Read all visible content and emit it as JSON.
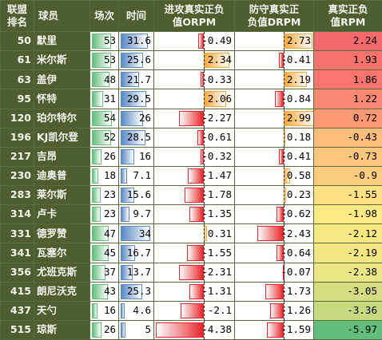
{
  "headers": {
    "rank": "联盟\n排名",
    "player": "球员",
    "games": "场次",
    "minutes": "时间",
    "orpm": "进攻真实正负\n值ORPM",
    "drpm": "防守真实正\n负值DRPM",
    "rpm": "真实正负\n值RPM"
  },
  "scales": {
    "games_max": 60,
    "minutes_max": 36,
    "rpm_abs_max": 4.4
  },
  "colors": {
    "olive": "#4f5e2e",
    "games_bar": "#63be7b",
    "minutes_bar": "#5a8ac6",
    "positive_bar": "#f8a83c",
    "negative_bar": "#e8262a",
    "rpm_high": "#f8696b",
    "rpm_mid": "#ffeb84",
    "rpm_low": "#63be7b"
  },
  "rows": [
    {
      "rank": "50",
      "name": "默里",
      "games": 53,
      "minutes": 31.6,
      "orpm": -0.49,
      "drpm": 2.73,
      "rpm": 2.24
    },
    {
      "rank": "61",
      "name": "米尔斯",
      "games": 53,
      "minutes": 25.6,
      "orpm": 2.34,
      "drpm": -0.41,
      "rpm": 1.93
    },
    {
      "rank": "63",
      "name": "盖伊",
      "games": 48,
      "minutes": 21.7,
      "orpm": -0.33,
      "drpm": 2.19,
      "rpm": 1.86
    },
    {
      "rank": "95",
      "name": "怀特",
      "games": 31,
      "minutes": 29.5,
      "orpm": 2.06,
      "drpm": -0.84,
      "rpm": 1.22
    },
    {
      "rank": "120",
      "name": "珀尔特尔",
      "games": 54,
      "minutes": 26,
      "orpm": -2.27,
      "drpm": 2.99,
      "rpm": 0.72
    },
    {
      "rank": "196",
      "name": "KJ凯尔登",
      "games": 52,
      "minutes": 28.5,
      "orpm": -0.61,
      "drpm": 0.18,
      "rpm": -0.43
    },
    {
      "rank": "217",
      "name": "吉昂",
      "games": 26,
      "minutes": 16,
      "orpm": -0.32,
      "drpm": -0.41,
      "rpm": -0.73
    },
    {
      "rank": "230",
      "name": "迪奥普",
      "games": 18,
      "minutes": 7.1,
      "orpm": -1.47,
      "drpm": 0.58,
      "rpm": -0.9
    },
    {
      "rank": "283",
      "name": "莱尔斯",
      "games": 23,
      "minutes": 15.6,
      "orpm": -1.78,
      "drpm": 0.23,
      "rpm": -1.55
    },
    {
      "rank": "314",
      "name": "卢卡",
      "games": 23,
      "minutes": 9.7,
      "orpm": -1.35,
      "drpm": -0.62,
      "rpm": -1.98
    },
    {
      "rank": "331",
      "name": "德罗赞",
      "games": 47,
      "minutes": 34,
      "orpm": 0.31,
      "drpm": -2.43,
      "rpm": -2.12
    },
    {
      "rank": "341",
      "name": "瓦塞尔",
      "games": 45,
      "minutes": 16.7,
      "orpm": -1.55,
      "drpm": -0.64,
      "rpm": -2.19
    },
    {
      "rank": "356",
      "name": "尤班克斯",
      "games": 37,
      "minutes": 13.7,
      "orpm": -2.31,
      "drpm": -0.07,
      "rpm": -2.38
    },
    {
      "rank": "415",
      "name": "朗尼沃克",
      "games": 43,
      "minutes": 25.3,
      "orpm": -1.31,
      "drpm": -1.73,
      "rpm": -3.05
    },
    {
      "rank": "437",
      "name": "天勺",
      "games": 16,
      "minutes": 4.6,
      "orpm": -2.1,
      "drpm": -1.26,
      "rpm": -3.36
    },
    {
      "rank": "515",
      "name": "琼斯",
      "games": 26,
      "minutes": 5,
      "orpm": -4.38,
      "drpm": -1.59,
      "rpm": -5.97
    }
  ]
}
